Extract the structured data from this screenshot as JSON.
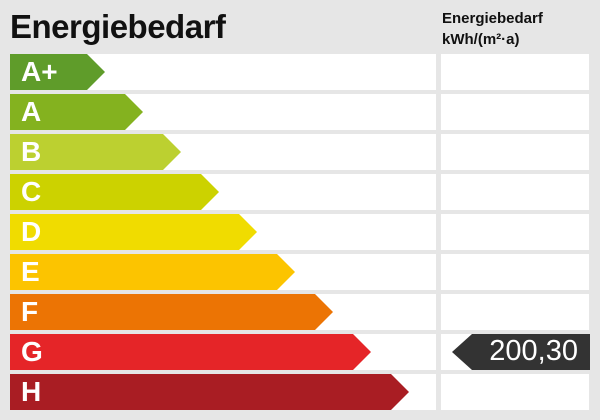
{
  "title": "Energiebedarf",
  "unit_line1": "Energiebedarf",
  "unit_line2": "kWh/(m²·a)",
  "classes": [
    {
      "label": "A+",
      "color": "#5f9c2a"
    },
    {
      "label": "A",
      "color": "#84b21f"
    },
    {
      "label": "B",
      "color": "#bcd030"
    },
    {
      "label": "C",
      "color": "#ccd200"
    },
    {
      "label": "D",
      "color": "#f0dc00"
    },
    {
      "label": "E",
      "color": "#fcc400"
    },
    {
      "label": "F",
      "color": "#ec7404"
    },
    {
      "label": "G",
      "color": "#e52528"
    },
    {
      "label": "H",
      "color": "#a91d23"
    }
  ],
  "indicator": {
    "value": "200,30",
    "class": "G",
    "color": "#333333"
  }
}
